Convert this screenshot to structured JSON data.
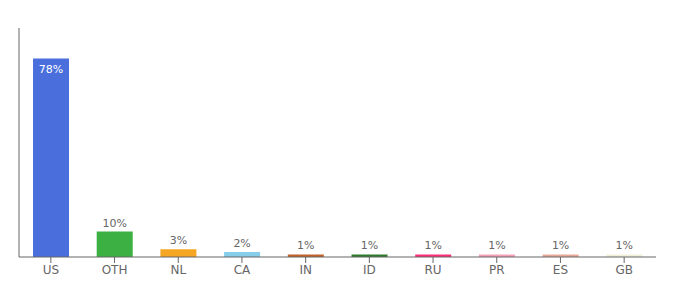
{
  "chart_data": {
    "type": "bar",
    "categories": [
      "US",
      "OTH",
      "NL",
      "CA",
      "IN",
      "ID",
      "RU",
      "PR",
      "ES",
      "GB"
    ],
    "values": [
      78,
      10,
      3,
      2,
      1,
      1,
      1,
      1,
      1,
      1
    ],
    "value_labels": [
      "78%",
      "10%",
      "3%",
      "2%",
      "1%",
      "1%",
      "1%",
      "1%",
      "1%",
      "1%"
    ],
    "colors": [
      "#4a6fdc",
      "#3cb043",
      "#f5a623",
      "#87ceeb",
      "#c0622a",
      "#2d7a2d",
      "#ff2d78",
      "#f4a0b5",
      "#e8a898",
      "#f0f0d8"
    ],
    "ylim": [
      0,
      90
    ],
    "data_labels": true,
    "tick_labels": "x",
    "grid": false
  }
}
